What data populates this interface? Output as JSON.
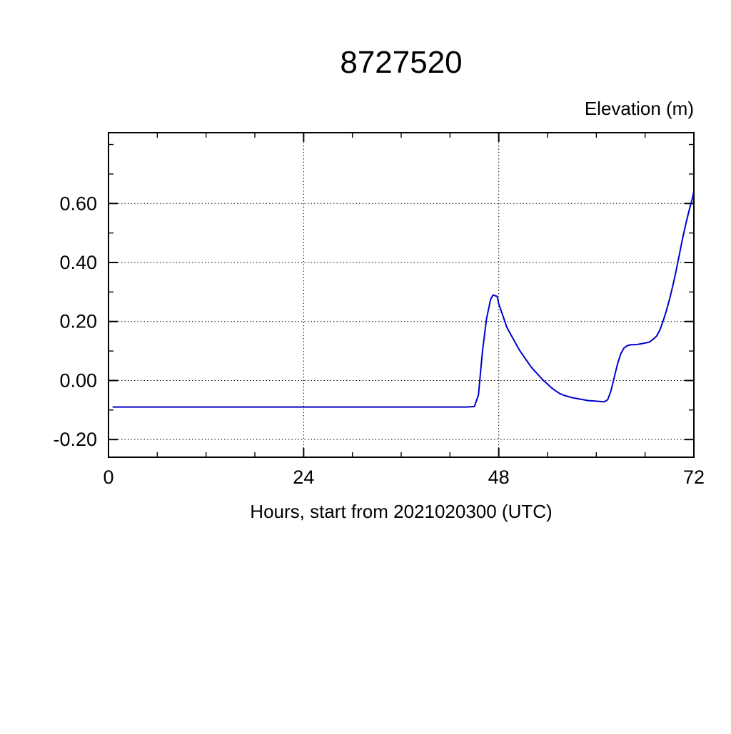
{
  "page": {
    "background": "#ffffff"
  },
  "chart_data": {
    "type": "line",
    "title": "8727520",
    "ylabel": "Elevation (m)",
    "xlabel": "Hours, start from 2021020300 (UTC)",
    "xlim": [
      0,
      72
    ],
    "ylim": [
      -0.26,
      0.84
    ],
    "xticks": [
      0,
      24,
      48,
      72
    ],
    "xtick_labels": [
      "0",
      "24",
      "48",
      "72"
    ],
    "x_minor_step": 6,
    "yticks": [
      -0.2,
      0.0,
      0.2,
      0.4,
      0.6
    ],
    "ytick_labels": [
      "-0.20",
      "0.00",
      "0.20",
      "0.40",
      "0.60"
    ],
    "y_minor_step": 0.1,
    "grid": "dotted",
    "legend": "none",
    "frame_color": "#000000",
    "grid_color": "#000000",
    "line_color": "#0000cd",
    "series": [
      {
        "name": "elevation",
        "points": [
          [
            0.5,
            -0.09
          ],
          [
            4,
            -0.09
          ],
          [
            8,
            -0.09
          ],
          [
            12,
            -0.09
          ],
          [
            16,
            -0.09
          ],
          [
            20,
            -0.09
          ],
          [
            24,
            -0.09
          ],
          [
            28,
            -0.09
          ],
          [
            32,
            -0.09
          ],
          [
            36,
            -0.09
          ],
          [
            40,
            -0.09
          ],
          [
            44,
            -0.09
          ],
          [
            45,
            -0.088
          ],
          [
            45.5,
            -0.05
          ],
          [
            46,
            0.1
          ],
          [
            46.5,
            0.21
          ],
          [
            47,
            0.275
          ],
          [
            47.3,
            0.29
          ],
          [
            47.8,
            0.285
          ],
          [
            48,
            0.26
          ],
          [
            48.5,
            0.22
          ],
          [
            49,
            0.18
          ],
          [
            49.5,
            0.155
          ],
          [
            50,
            0.13
          ],
          [
            50.5,
            0.105
          ],
          [
            51,
            0.085
          ],
          [
            51.5,
            0.065
          ],
          [
            52,
            0.045
          ],
          [
            52.5,
            0.03
          ],
          [
            53,
            0.015
          ],
          [
            53.5,
            0.0
          ],
          [
            54,
            -0.012
          ],
          [
            54.5,
            -0.025
          ],
          [
            55,
            -0.035
          ],
          [
            55.5,
            -0.044
          ],
          [
            56,
            -0.05
          ],
          [
            57,
            -0.058
          ],
          [
            58,
            -0.063
          ],
          [
            59,
            -0.068
          ],
          [
            60,
            -0.07
          ],
          [
            60.5,
            -0.071
          ],
          [
            61,
            -0.072
          ],
          [
            61.4,
            -0.065
          ],
          [
            61.8,
            -0.035
          ],
          [
            62.2,
            0.01
          ],
          [
            62.6,
            0.055
          ],
          [
            63,
            0.09
          ],
          [
            63.4,
            0.11
          ],
          [
            63.8,
            0.118
          ],
          [
            64.2,
            0.121
          ],
          [
            65,
            0.122
          ],
          [
            65.6,
            0.125
          ],
          [
            66,
            0.127
          ],
          [
            66.5,
            0.13
          ],
          [
            67,
            0.14
          ],
          [
            67.4,
            0.15
          ],
          [
            67.8,
            0.17
          ],
          [
            68.2,
            0.2
          ],
          [
            68.6,
            0.235
          ],
          [
            69,
            0.275
          ],
          [
            69.4,
            0.32
          ],
          [
            69.8,
            0.37
          ],
          [
            70.2,
            0.425
          ],
          [
            70.6,
            0.48
          ],
          [
            71,
            0.53
          ],
          [
            71.4,
            0.575
          ],
          [
            71.8,
            0.615
          ],
          [
            72,
            0.64
          ]
        ]
      }
    ]
  }
}
